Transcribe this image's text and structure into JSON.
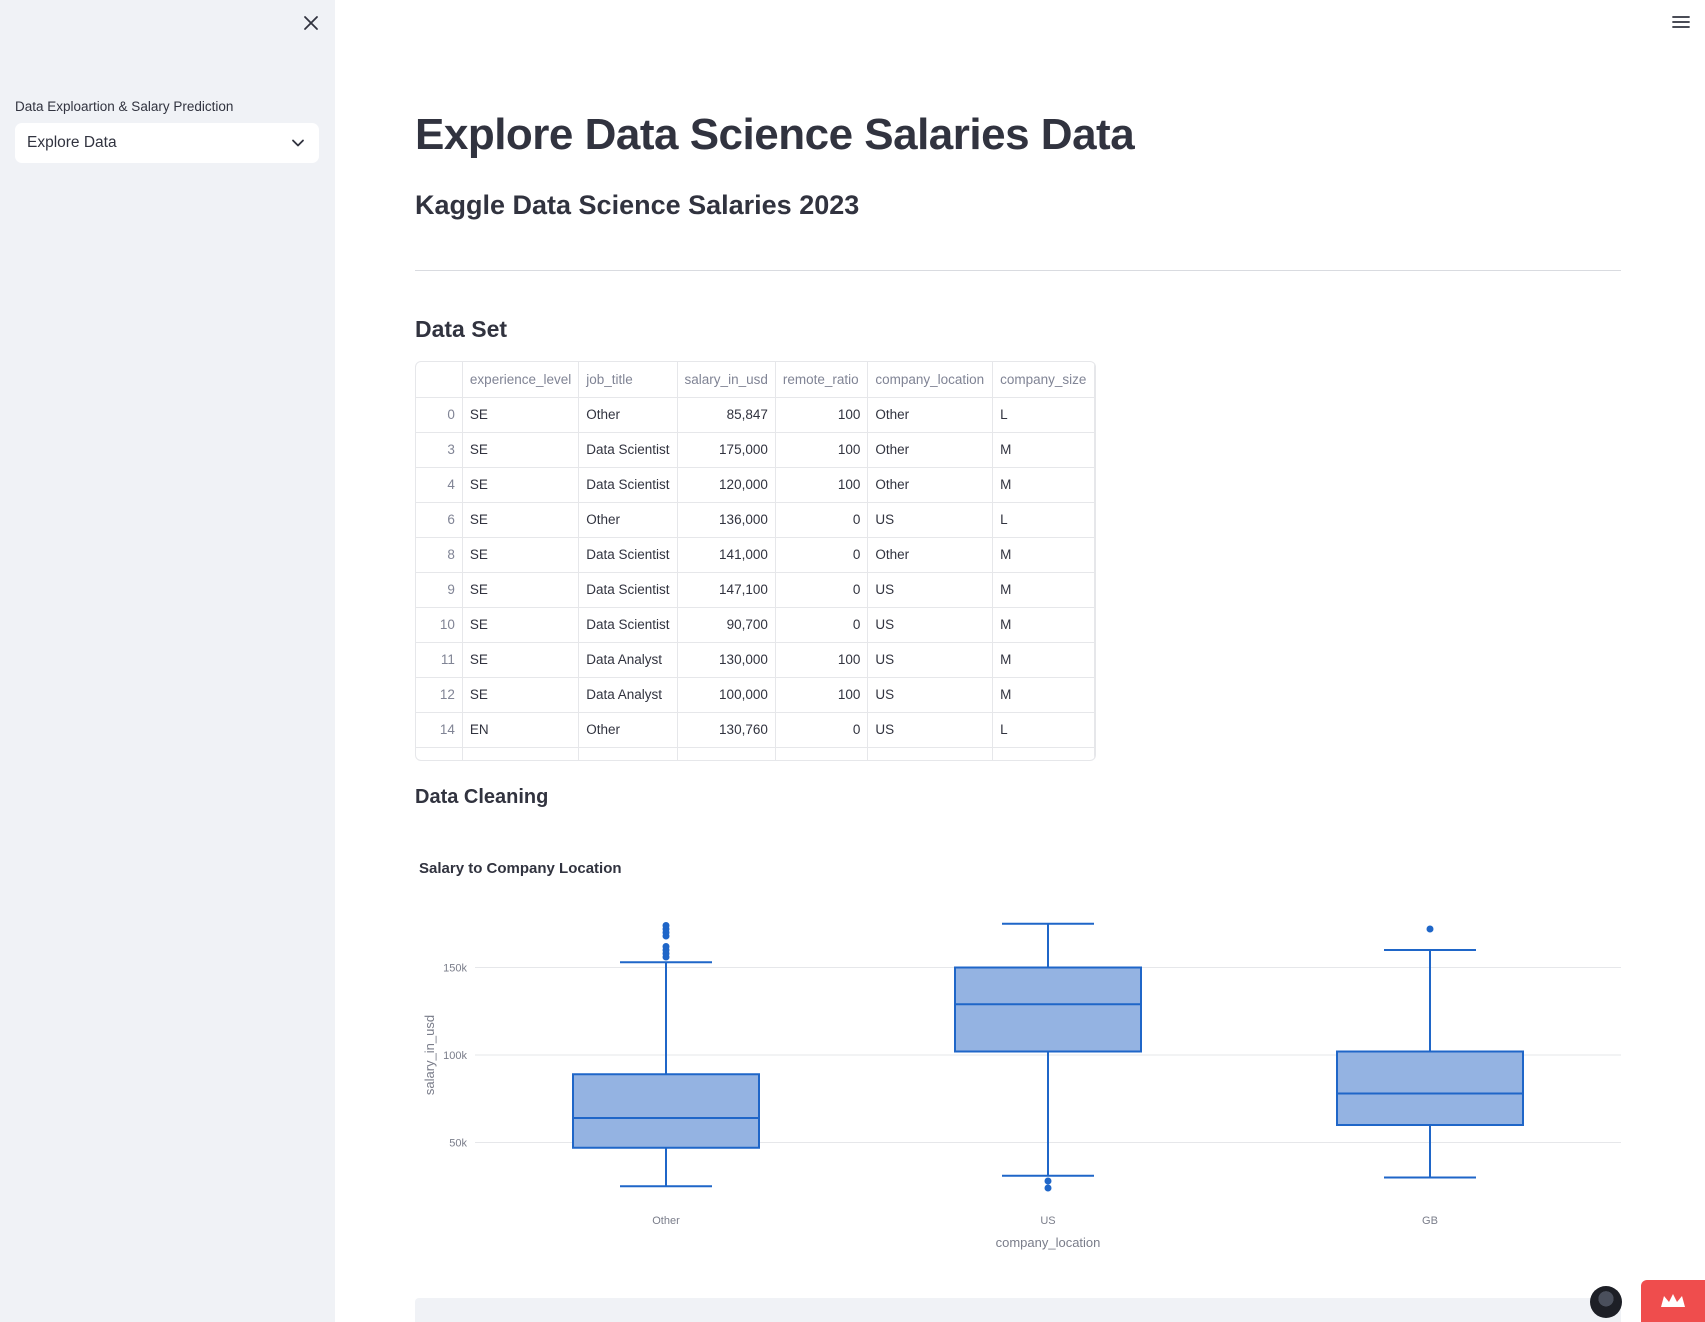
{
  "sidebar": {
    "select_label": "Data Exploartion & Salary Prediction",
    "select_value": "Explore Data"
  },
  "main": {
    "title": "Explore Data Science Salaries Data",
    "subtitle": "Kaggle Data Science Salaries 2023",
    "dataset_heading": "Data Set",
    "cleaning_heading": "Data Cleaning"
  },
  "table": {
    "columns": [
      "",
      "experience_level",
      "job_title",
      "salary_in_usd",
      "remote_ratio",
      "company_location",
      "company_size"
    ],
    "rows": [
      [
        "0",
        "SE",
        "Other",
        "85,847",
        "100",
        "Other",
        "L"
      ],
      [
        "3",
        "SE",
        "Data Scientist",
        "175,000",
        "100",
        "Other",
        "M"
      ],
      [
        "4",
        "SE",
        "Data Scientist",
        "120,000",
        "100",
        "Other",
        "M"
      ],
      [
        "6",
        "SE",
        "Other",
        "136,000",
        "0",
        "US",
        "L"
      ],
      [
        "8",
        "SE",
        "Data Scientist",
        "141,000",
        "0",
        "Other",
        "M"
      ],
      [
        "9",
        "SE",
        "Data Scientist",
        "147,100",
        "0",
        "US",
        "M"
      ],
      [
        "10",
        "SE",
        "Data Scientist",
        "90,700",
        "0",
        "US",
        "M"
      ],
      [
        "11",
        "SE",
        "Data Analyst",
        "130,000",
        "100",
        "US",
        "M"
      ],
      [
        "12",
        "SE",
        "Data Analyst",
        "100,000",
        "100",
        "US",
        "M"
      ],
      [
        "14",
        "EN",
        "Other",
        "130,760",
        "0",
        "US",
        "L"
      ]
    ]
  },
  "chart_data": {
    "type": "box",
    "title": "Salary to Company Location",
    "xlabel": "company_location",
    "ylabel": "salary_in_usd",
    "ylim": [
      20000,
      180000
    ],
    "yticks": [
      50000,
      100000,
      150000
    ],
    "ytick_labels": [
      "50k",
      "100k",
      "150k"
    ],
    "grid": true,
    "color": "#1f66c8",
    "fill": "#94b3e2",
    "categories": [
      "Other",
      "US",
      "GB"
    ],
    "boxes": [
      {
        "category": "Other",
        "lower_whisker": 25000,
        "q1": 47000,
        "median": 64000,
        "q3": 89000,
        "upper_whisker": 153000,
        "outliers": [
          156000,
          158000,
          160000,
          162000,
          168000,
          170000,
          172000,
          174000
        ]
      },
      {
        "category": "US",
        "lower_whisker": 31000,
        "q1": 102000,
        "median": 129000,
        "q3": 150000,
        "upper_whisker": 175000,
        "outliers": [
          28000,
          24000
        ]
      },
      {
        "category": "GB",
        "lower_whisker": 30000,
        "q1": 60000,
        "median": 78000,
        "q3": 102000,
        "upper_whisker": 160000,
        "outliers": [
          172000
        ]
      }
    ]
  }
}
